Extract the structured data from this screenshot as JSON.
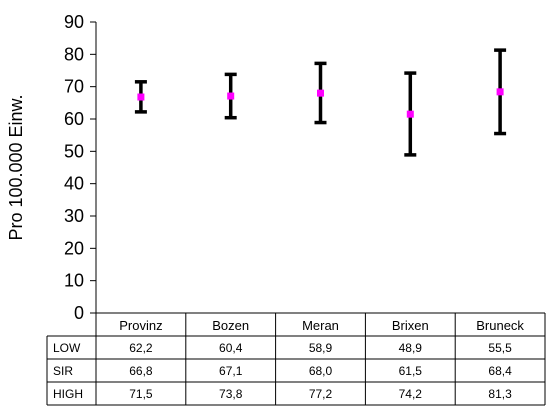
{
  "chart_data": {
    "type": "errorbar",
    "ylabel": "Pro 100.000 Einw.",
    "ylim": [
      0,
      90
    ],
    "ytick_step": 10,
    "categories": [
      "Provinz",
      "Bozen",
      "Meran",
      "Brixen",
      "Bruneck"
    ],
    "series": [
      {
        "name": "LOW",
        "values": [
          "62,2",
          "60,4",
          "58,9",
          "48,9",
          "55,5"
        ]
      },
      {
        "name": "SIR",
        "values": [
          "66,8",
          "67,1",
          "68,0",
          "61,5",
          "68,4"
        ]
      },
      {
        "name": "HIGH",
        "values": [
          "71,5",
          "73,8",
          "77,2",
          "74,2",
          "81,3"
        ]
      }
    ],
    "colors": {
      "bar": "#000000",
      "point": "#ff00ff",
      "axis": "#000000"
    },
    "grid": false,
    "legend": "none"
  }
}
